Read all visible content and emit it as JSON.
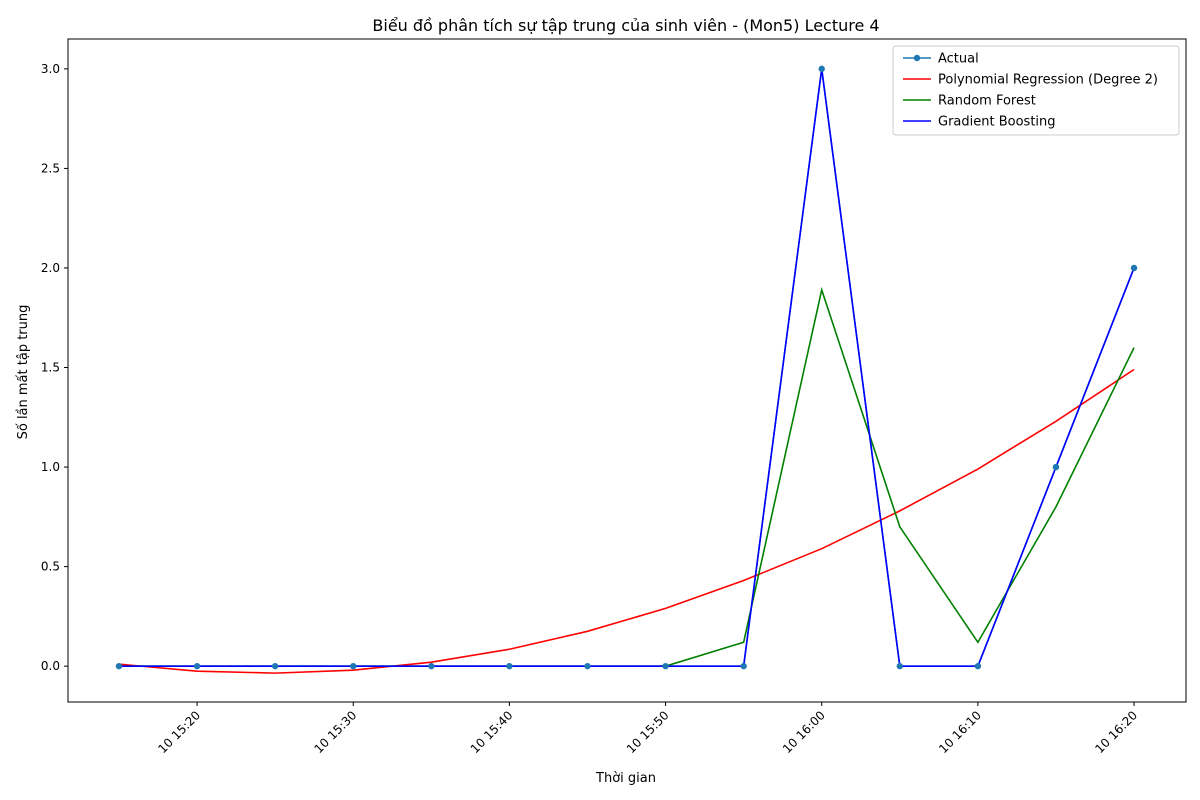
{
  "chart_data": {
    "type": "line",
    "title": "Biểu đồ phân tích sự tập trung của sinh viên - (Mon5) Lecture 4",
    "xlabel": "Thời gian",
    "ylabel": "Số lần mất tập trung",
    "x": [
      "15:15",
      "15:20",
      "15:25",
      "15:30",
      "15:35",
      "15:40",
      "15:45",
      "15:50",
      "15:55",
      "16:00",
      "16:05",
      "16:10",
      "16:15",
      "16:20"
    ],
    "x_ticks": [
      "10 15:20",
      "10 15:30",
      "10 15:40",
      "10 15:50",
      "10 16:00",
      "10 16:10",
      "10 16:20"
    ],
    "ylim": [
      -0.18,
      3.15
    ],
    "y_ticks": [
      "0.0",
      "0.5",
      "1.0",
      "1.5",
      "2.0",
      "2.5",
      "3.0"
    ],
    "grid": false,
    "legend_position": "top-right",
    "series": [
      {
        "name": "Actual",
        "color": "#1f77b4",
        "marker": true,
        "values": [
          0,
          0,
          0,
          0,
          0,
          0,
          0,
          0,
          0,
          3,
          0,
          0,
          1,
          2
        ]
      },
      {
        "name": "Polynomial Regression (Degree 2)",
        "color": "#ff0000",
        "marker": false,
        "values": [
          0.01,
          -0.025,
          -0.035,
          -0.02,
          0.02,
          0.085,
          0.175,
          0.29,
          0.43,
          0.59,
          0.78,
          0.99,
          1.23,
          1.49
        ]
      },
      {
        "name": "Random Forest",
        "color": "#008000",
        "marker": false,
        "values": [
          0,
          0,
          0,
          0,
          0,
          0,
          0,
          0,
          0.12,
          1.89,
          0.7,
          0.12,
          0.8,
          1.6
        ]
      },
      {
        "name": "Gradient Boosting",
        "color": "#0000ff",
        "marker": false,
        "values": [
          0,
          0,
          0,
          0,
          0,
          0,
          0,
          0,
          0,
          3,
          0,
          0,
          1,
          2
        ]
      }
    ]
  }
}
